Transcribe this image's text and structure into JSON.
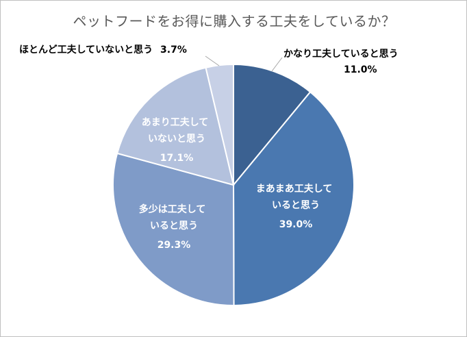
{
  "chart_data": {
    "type": "pie",
    "title": "ペットフードをお得に購入する工夫をしているか？",
    "slices": [
      {
        "label": "かなり工夫していると思う",
        "value": 11.0,
        "value_text": "11.0%",
        "color": "#3b6191"
      },
      {
        "label": "まあまあ工夫していると思う",
        "value": 39.0,
        "value_text": "39.0%",
        "color": "#4a78b0"
      },
      {
        "label": "多少は工夫していると思う",
        "value": 29.3,
        "value_text": "29.3%",
        "color": "#7f9bc8"
      },
      {
        "label": "あまり工夫していないと思う",
        "value": 17.1,
        "value_text": "17.1%",
        "color": "#b3c1dd"
      },
      {
        "label": "ほとんど工夫していないと思う",
        "value": 3.7,
        "value_text": "3.7%",
        "color": "#c7d0e6"
      }
    ]
  }
}
